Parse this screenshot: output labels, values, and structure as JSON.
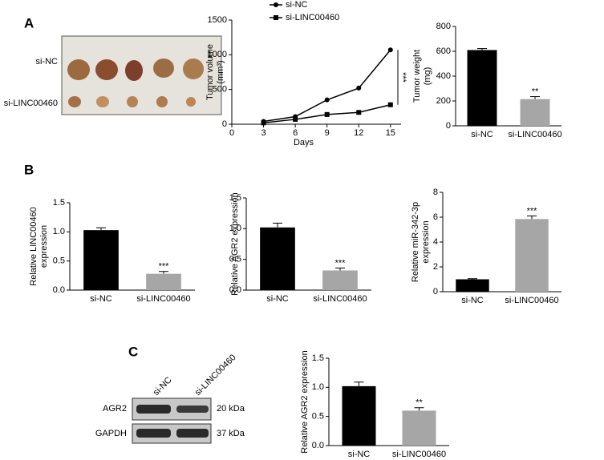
{
  "panel_labels": [
    "A",
    "B",
    "C"
  ],
  "photo": {
    "rows": [
      "si-NC",
      "si-LINC00460"
    ]
  },
  "blot": {
    "lanes": [
      "si-NC",
      "si-LINC00460"
    ],
    "rows": [
      {
        "label": "AGR2",
        "size": "20 kDa"
      },
      {
        "label": "GAPDH",
        "size": "37 kDa"
      }
    ]
  },
  "chart_data": [
    {
      "type": "line",
      "ylabel": [
        "Tumor volume",
        "(mm³)"
      ],
      "xlabel": "Days",
      "x": [
        3,
        6,
        9,
        12,
        15
      ],
      "series": [
        {
          "name": "si-NC",
          "color": "#000000",
          "marker": "circle",
          "values": [
            40,
            110,
            350,
            520,
            1070
          ],
          "errors": [
            3,
            8,
            10,
            15,
            25
          ]
        },
        {
          "name": "si-LINC00460",
          "color": "#000000",
          "marker": "square",
          "values": [
            20,
            70,
            140,
            170,
            280
          ],
          "errors": [
            2,
            5,
            8,
            10,
            15
          ]
        }
      ],
      "xlim": [
        0,
        16
      ],
      "xticks": [
        0,
        3,
        6,
        9,
        12,
        15
      ],
      "ylim": [
        0,
        1500
      ],
      "yticks": [
        0,
        500,
        1000,
        1500
      ],
      "significance": "***"
    },
    {
      "type": "bar",
      "ylabel": [
        "Tumor weight",
        "(mg)"
      ],
      "categories": [
        "si-NC",
        "si-LINC00460"
      ],
      "values": [
        610,
        215
      ],
      "errors": [
        12,
        20
      ],
      "colors": [
        "#000000",
        "#a6a6a6"
      ],
      "ylim": [
        0,
        800
      ],
      "yticks": [
        0,
        200,
        400,
        600,
        800
      ],
      "significance": "**"
    },
    {
      "type": "bar",
      "ylabel": [
        "Relative LINC00460",
        "expression"
      ],
      "categories": [
        "si-NC",
        "si-LINC00460"
      ],
      "values": [
        1.03,
        0.28
      ],
      "errors": [
        0.04,
        0.04
      ],
      "colors": [
        "#000000",
        "#a6a6a6"
      ],
      "ylim": [
        0,
        1.5
      ],
      "yticks": [
        {
          "value": 0,
          "label": "0.0"
        },
        0.5,
        {
          "value": 1,
          "label": "1.0"
        },
        1.5
      ],
      "significance": "***"
    },
    {
      "type": "bar",
      "ylabel": [
        "Relative AGR2 expression"
      ],
      "categories": [
        "si-NC",
        "si-LINC00460"
      ],
      "values": [
        1.02,
        0.32
      ],
      "errors": [
        0.07,
        0.04
      ],
      "colors": [
        "#000000",
        "#a6a6a6"
      ],
      "ylim": [
        0,
        1.5
      ],
      "yticks": [
        {
          "value": 0,
          "label": "0.0"
        },
        0.5,
        {
          "value": 1,
          "label": "1.0"
        },
        1.5
      ],
      "significance": "***"
    },
    {
      "type": "bar",
      "ylabel": [
        "Relative miR-342-3p",
        "expression"
      ],
      "categories": [
        "si-NC",
        "si-LINC00460"
      ],
      "values": [
        1.0,
        5.85
      ],
      "errors": [
        0.05,
        0.25
      ],
      "colors": [
        "#000000",
        "#a6a6a6"
      ],
      "ylim": [
        0,
        8
      ],
      "yticks": [
        0,
        2,
        4,
        6,
        8
      ],
      "significance": "***"
    },
    {
      "type": "bar",
      "ylabel": [
        "Relative AGR2 expression"
      ],
      "categories": [
        "si-NC",
        "si-LINC00460"
      ],
      "values": [
        1.02,
        0.6
      ],
      "errors": [
        0.07,
        0.05
      ],
      "colors": [
        "#000000",
        "#a6a6a6"
      ],
      "ylim": [
        0,
        1.5
      ],
      "yticks": [
        {
          "value": 0,
          "label": "0.0"
        },
        0.5,
        {
          "value": 1,
          "label": "1.0"
        },
        1.5
      ],
      "significance": "**"
    }
  ]
}
